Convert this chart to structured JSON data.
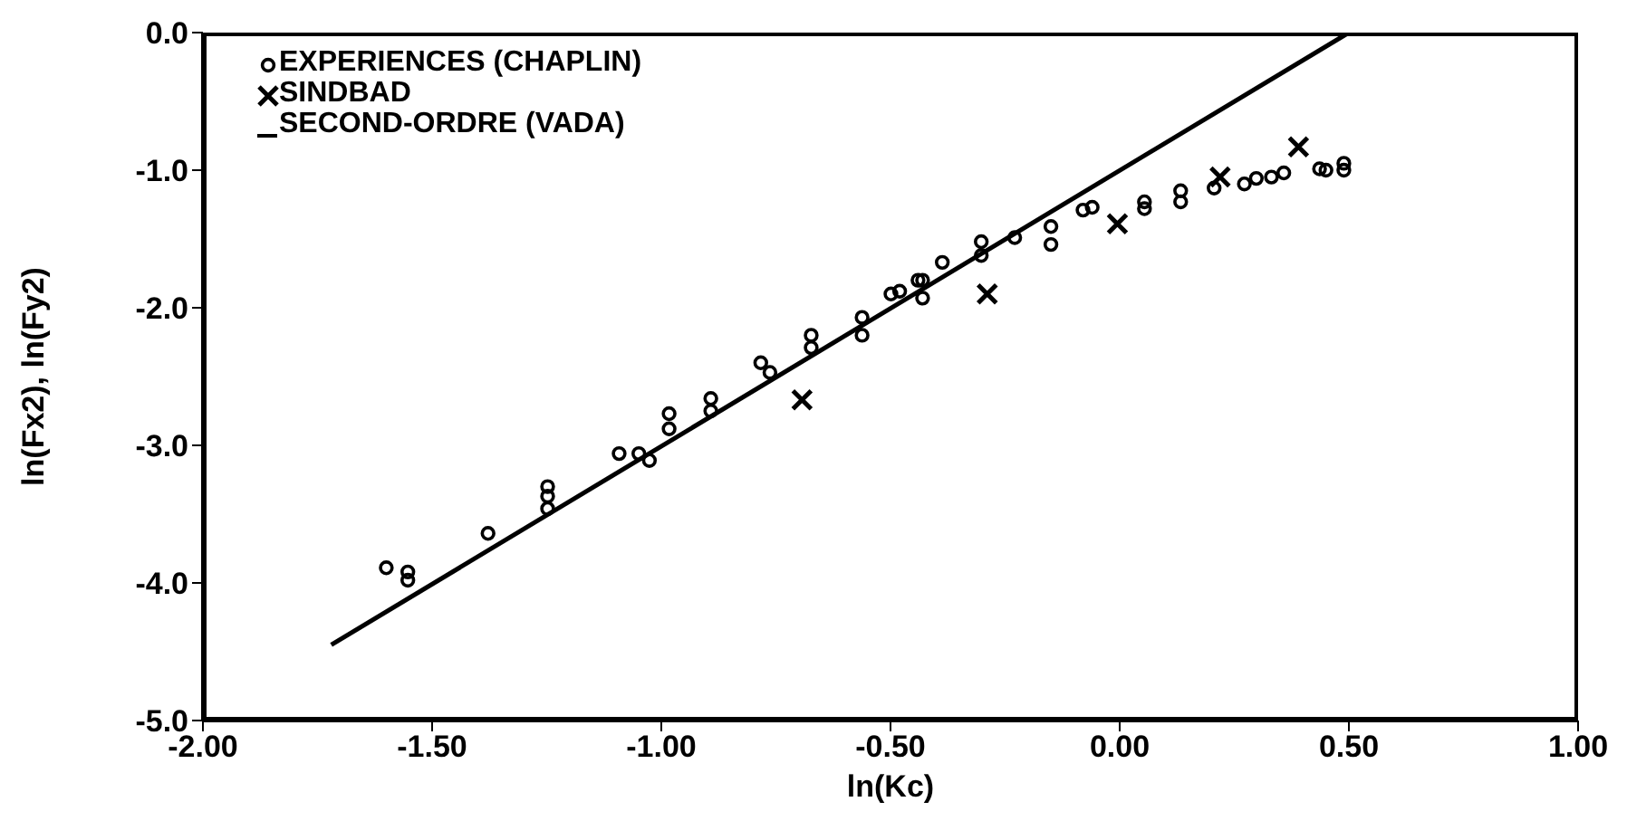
{
  "chart_data": {
    "type": "scatter",
    "xlabel": "ln(Kc)",
    "ylabel": "ln(Fx2), ln(Fy2)",
    "xlim": [
      -2,
      1
    ],
    "ylim": [
      -5,
      0
    ],
    "xticks": [
      {
        "value": -2,
        "label": "-2.00"
      },
      {
        "value": -1.5,
        "label": "-1.50"
      },
      {
        "value": -1,
        "label": "-1.00"
      },
      {
        "value": -0.5,
        "label": "-0.50"
      },
      {
        "value": 0,
        "label": "0.00"
      },
      {
        "value": 0.5,
        "label": "0.50"
      },
      {
        "value": 1,
        "label": "1.00"
      }
    ],
    "yticks": [
      {
        "value": 0,
        "label": "0.0"
      },
      {
        "value": -1,
        "label": "-1.0"
      },
      {
        "value": -2,
        "label": "-2.0"
      },
      {
        "value": -3,
        "label": "-3.0"
      },
      {
        "value": -4,
        "label": "-4.0"
      },
      {
        "value": -5,
        "label": "-5.0"
      }
    ],
    "legend": "top left",
    "series": [
      {
        "name": "EXPERIENCES (CHAPLIN)",
        "marker": "circle",
        "color": "#000000",
        "x": [
          -1.6,
          -1.553,
          -1.553,
          -1.378,
          -1.248,
          -1.248,
          -1.248,
          -1.092,
          -1.049,
          -1.026,
          -0.983,
          -0.983,
          -0.892,
          -0.892,
          -0.783,
          -0.763,
          -0.673,
          -0.673,
          -0.562,
          -0.562,
          -0.499,
          -0.48,
          -0.44,
          -0.43,
          -0.43,
          -0.387,
          -0.302,
          -0.302,
          -0.229,
          -0.15,
          -0.15,
          -0.08,
          -0.06,
          0.054,
          0.054,
          0.133,
          0.133,
          0.206,
          0.272,
          0.298,
          0.331,
          0.358,
          0.436,
          0.45,
          0.489,
          0.489
        ],
        "values": [
          -3.89,
          -3.92,
          -3.98,
          -3.64,
          -3.3,
          -3.37,
          -3.46,
          -3.06,
          -3.06,
          -3.11,
          -2.77,
          -2.88,
          -2.66,
          -2.75,
          -2.4,
          -2.47,
          -2.2,
          -2.29,
          -2.07,
          -2.2,
          -1.9,
          -1.88,
          -1.8,
          -1.8,
          -1.93,
          -1.67,
          -1.52,
          -1.62,
          -1.49,
          -1.41,
          -1.54,
          -1.29,
          -1.27,
          -1.23,
          -1.28,
          -1.15,
          -1.23,
          -1.13,
          -1.1,
          -1.06,
          -1.05,
          -1.02,
          -0.99,
          -1.0,
          -0.95,
          -1.0
        ]
      },
      {
        "name": "SINDBAD",
        "marker": "cross",
        "color": "#000000",
        "x": [
          -0.693,
          -0.289,
          -0.005,
          0.219,
          0.39
        ],
        "values": [
          -2.67,
          -1.9,
          -1.39,
          -1.05,
          -0.83
        ]
      },
      {
        "name": "SECOND-ORDRE (VADA)",
        "type": "line",
        "line_style": "solid",
        "color": "#000000",
        "x": [
          -1.72,
          0.5
        ],
        "values": [
          -4.45,
          0.0
        ]
      }
    ]
  }
}
